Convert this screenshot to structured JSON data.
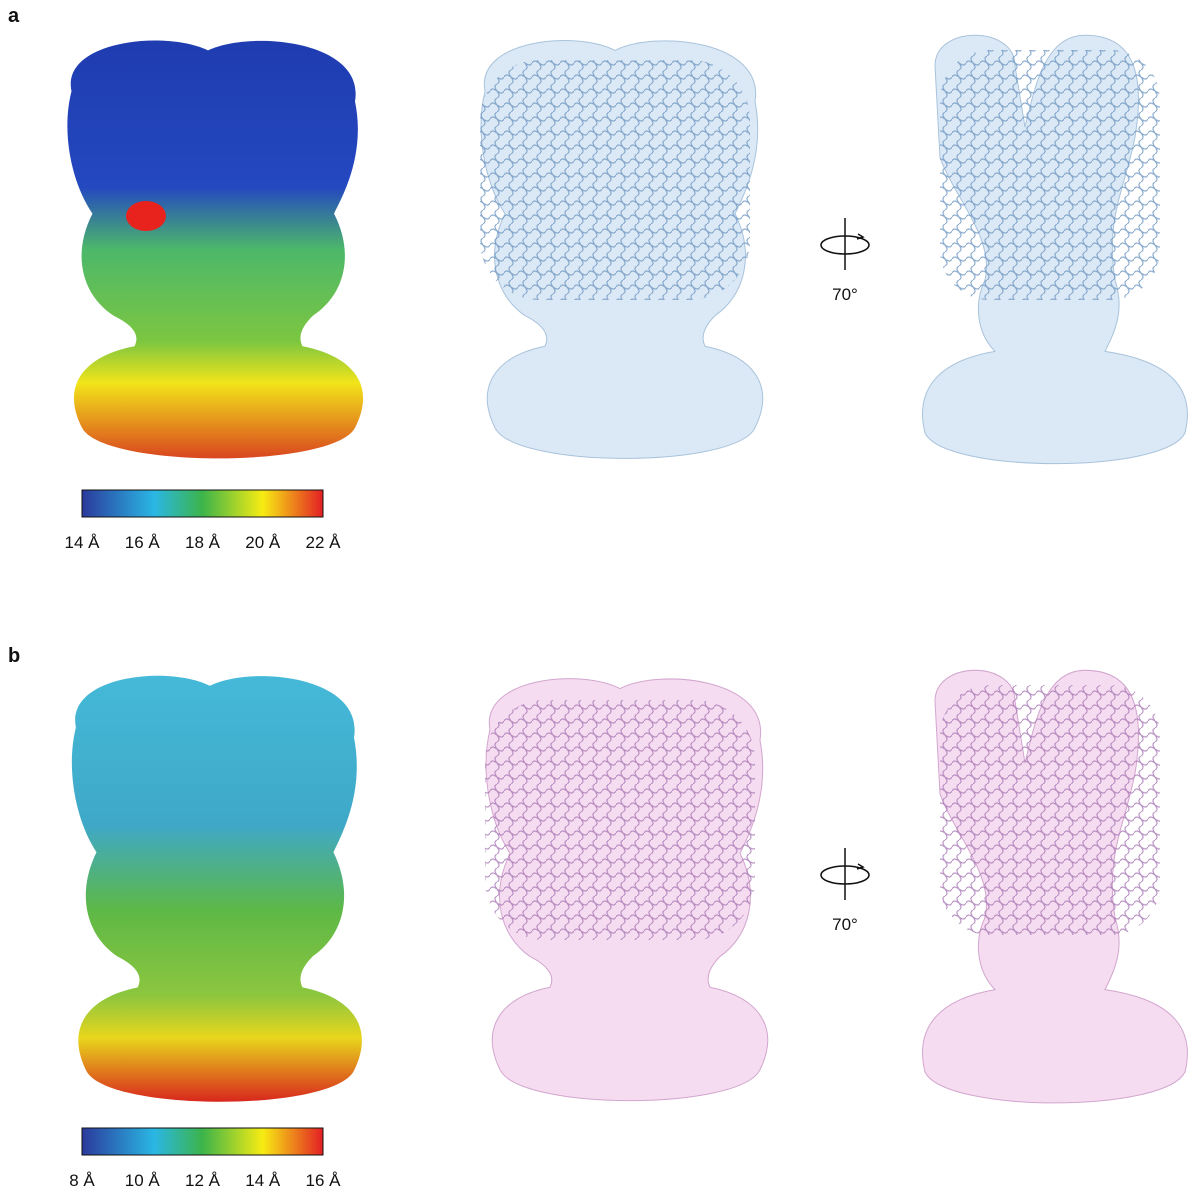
{
  "panels": [
    {
      "label": "a",
      "colorbar_ticks": [
        "14 Å",
        "16 Å",
        "18 Å",
        "20 Å",
        "22 Å"
      ],
      "rotation": "70°"
    },
    {
      "label": "b",
      "colorbar_ticks": [
        "8 Å",
        "10 Å",
        "12 Å",
        "14 Å",
        "16 Å"
      ],
      "rotation": "70°"
    }
  ]
}
